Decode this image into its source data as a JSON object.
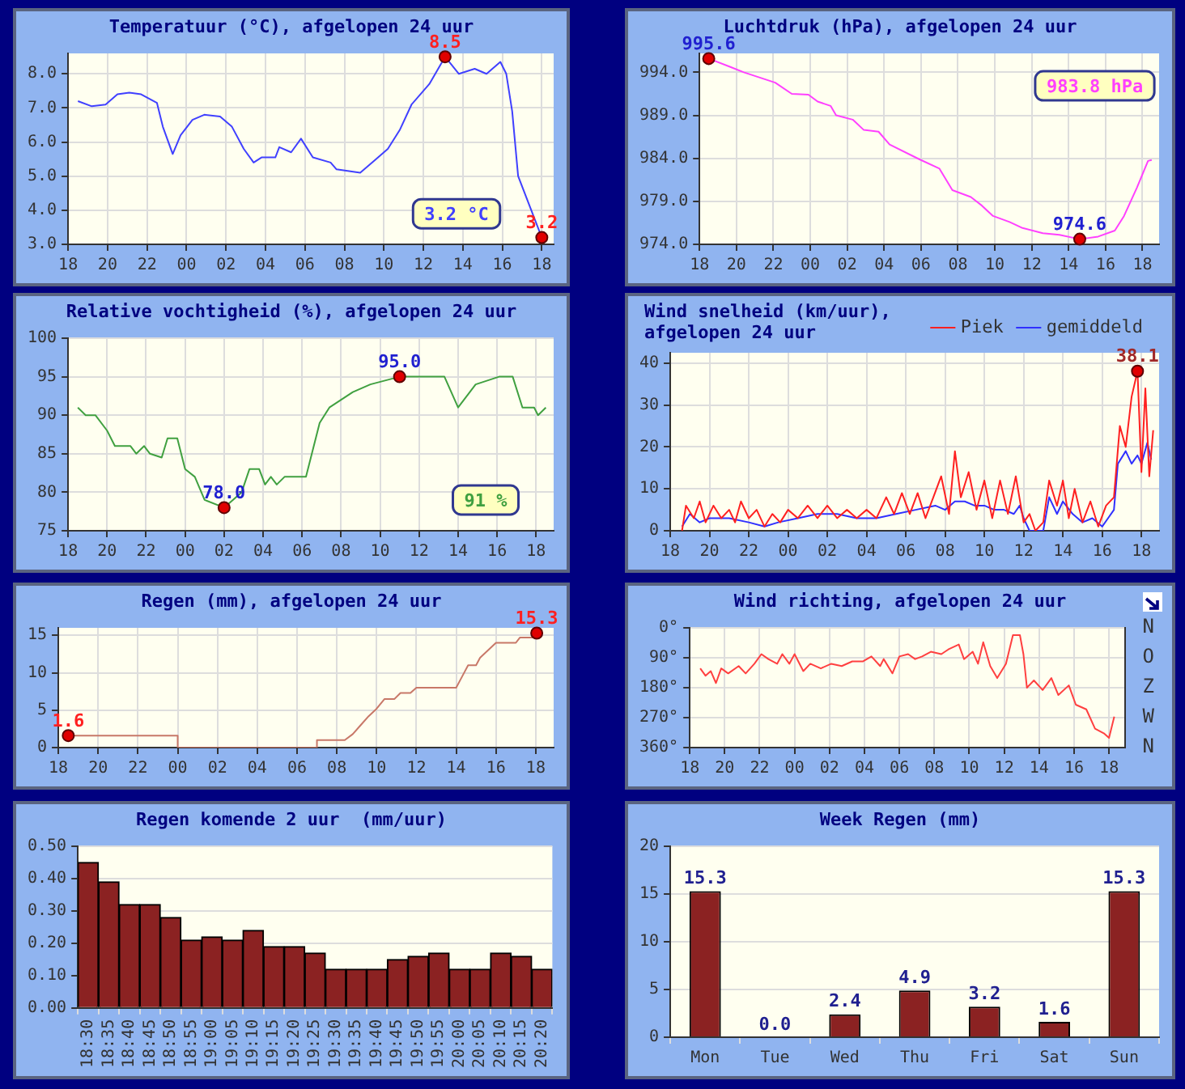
{
  "chart_data": [
    {
      "type": "line",
      "title": "Temperatuur (°C), afgelopen 24 uur",
      "x": [
        "--01-01T18:30",
        "--01-01T19:12",
        "--01-01T19:54",
        "--01-01T20:30",
        "--01-01T21:06",
        "--01-01T21:42",
        "--01-01T22:30",
        "--01-01T22:48",
        "--01-01T23:18",
        "--01-01T23:42",
        "--01-02T00:18",
        "--01-02T00:54",
        "--01-02T01:42",
        "--01-02T02:18",
        "--01-02T02:54",
        "--01-02T03:24",
        "--01-02T03:48",
        "--01-02T04:30",
        "--01-02T04:42",
        "--01-02T05:18",
        "--01-02T05:48",
        "--01-02T06:24",
        "--01-02T07:18",
        "--01-02T07:36",
        "--01-02T08:48",
        "--01-02T09:36",
        "--01-02T10:12",
        "--01-02T10:48",
        "--01-02T11:24",
        "--01-02T12:18",
        "--01-02T13:06",
        "--01-02T13:48",
        "--01-02T14:36",
        "--01-02T15:12",
        "--01-02T15:54",
        "--01-02T16:12",
        "--01-02T16:30",
        "--01-02T16:48",
        "--01-02T17:24",
        "--01-02T18:00"
      ],
      "series": [
        {
          "color": "#4040ff",
          "values": [
            7.2,
            7.05,
            7.1,
            7.4,
            7.45,
            7.4,
            7.15,
            6.45,
            5.65,
            6.2,
            6.65,
            6.8,
            6.75,
            6.45,
            5.8,
            5.4,
            5.55,
            5.55,
            5.85,
            5.7,
            6.1,
            5.55,
            5.4,
            5.2,
            5.1,
            5.5,
            5.8,
            6.35,
            7.1,
            7.7,
            8.5,
            8.0,
            8.15,
            8.0,
            8.35,
            8.0,
            6.9,
            5.0,
            4.1,
            3.2
          ]
        }
      ],
      "xlim": [
        "--01-01T18:00",
        "--01-02T18:36"
      ],
      "xticks": [
        {
          "value": "--01-01T18:00",
          "label": "18"
        },
        {
          "value": "--01-01T20:00",
          "label": "20"
        },
        {
          "value": "--01-01T22:00",
          "label": "22"
        },
        {
          "value": "--01-02T00:00",
          "label": "00"
        },
        {
          "value": "--01-02T02:00",
          "label": "02"
        },
        {
          "value": "--01-02T04:00",
          "label": "04"
        },
        {
          "value": "--01-02T06:00",
          "label": "06"
        },
        {
          "value": "--01-02T08:00",
          "label": "08"
        },
        {
          "value": "--01-02T10:00",
          "label": "10"
        },
        {
          "value": "--01-02T12:00",
          "label": "12"
        },
        {
          "value": "--01-02T14:00",
          "label": "14"
        },
        {
          "value": "--01-02T16:00",
          "label": "16"
        },
        {
          "value": "--01-02T18:00",
          "label": "18"
        }
      ],
      "ylim": [
        3.0,
        8.6
      ],
      "yticks": [
        {
          "value": 3,
          "label": "3.0"
        },
        {
          "value": 4,
          "label": "4.0"
        },
        {
          "value": 5,
          "label": "5.0"
        },
        {
          "value": 6,
          "label": "6.0"
        },
        {
          "value": 7,
          "label": "7.0"
        },
        {
          "value": 8,
          "label": "8.0"
        }
      ],
      "grid": true,
      "annotations": [
        {
          "text": "8.5",
          "x": "--01-02T13:06",
          "y": 8.5
        },
        {
          "text": "3.2",
          "x": "--01-02T18:00",
          "y": 3.2
        },
        "3.2 °C"
      ]
    },
    {
      "type": "line",
      "title": "Luchtdruk (hPa), afgelopen 24 uur",
      "x": [
        "--01-01T18:30",
        "--01-01T19:42",
        "--01-01T20:24",
        "--01-01T22:06",
        "--01-01T23:00",
        "--01-01T23:54",
        "--01-02T00:24",
        "--01-02T01:06",
        "--01-02T01:24",
        "--01-02T02:18",
        "--01-02T02:54",
        "--01-02T03:42",
        "--01-02T04:18",
        "--01-02T05:54",
        "--01-02T07:00",
        "--01-02T07:42",
        "--01-02T08:42",
        "--01-02T09:18",
        "--01-02T09:54",
        "--01-02T10:48",
        "--01-02T11:30",
        "--01-02T12:36",
        "--01-02T13:30",
        "--01-02T14:36",
        "--01-02T15:36",
        "--01-02T16:30",
        "--01-02T17:00",
        "--01-02T17:42",
        "--01-02T18:18",
        "--01-02T18:30"
      ],
      "series": [
        {
          "color": "#ff40ff",
          "values": [
            995.6,
            994.6,
            994.0,
            992.8,
            991.5,
            991.4,
            990.6,
            990.1,
            989.0,
            988.5,
            987.3,
            987.1,
            985.6,
            983.9,
            982.8,
            980.3,
            979.5,
            978.5,
            977.3,
            976.6,
            975.9,
            975.3,
            975.1,
            974.6,
            974.9,
            975.6,
            977.3,
            980.6,
            983.7,
            983.8
          ]
        }
      ],
      "xlim": [
        "--01-01T18:00",
        "--01-02T18:54"
      ],
      "xticks": [
        {
          "value": "--01-01T18:00",
          "label": "18"
        },
        {
          "value": "--01-01T20:00",
          "label": "20"
        },
        {
          "value": "--01-01T22:00",
          "label": "22"
        },
        {
          "value": "--01-02T00:00",
          "label": "00"
        },
        {
          "value": "--01-02T02:00",
          "label": "02"
        },
        {
          "value": "--01-02T04:00",
          "label": "04"
        },
        {
          "value": "--01-02T06:00",
          "label": "06"
        },
        {
          "value": "--01-02T08:00",
          "label": "08"
        },
        {
          "value": "--01-02T10:00",
          "label": "10"
        },
        {
          "value": "--01-02T12:00",
          "label": "12"
        },
        {
          "value": "--01-02T14:00",
          "label": "14"
        },
        {
          "value": "--01-02T16:00",
          "label": "16"
        },
        {
          "value": "--01-02T18:00",
          "label": "18"
        }
      ],
      "ylim": [
        974,
        996.2
      ],
      "yticks": [
        {
          "value": 974,
          "label": "974.0"
        },
        {
          "value": 979,
          "label": "979.0"
        },
        {
          "value": 984,
          "label": "984.0"
        },
        {
          "value": 989,
          "label": "989.0"
        },
        {
          "value": 994,
          "label": "994.0"
        }
      ],
      "grid": true,
      "annotations": [
        {
          "text": "995.6",
          "x": "--01-01T18:30",
          "y": 995.6
        },
        {
          "text": "974.6",
          "x": "--01-02T14:36",
          "y": 974.6
        },
        "983.8 hPa"
      ]
    },
    {
      "type": "line",
      "title": "Relative vochtigheid (%), afgelopen 24 uur",
      "x": [
        "--01-01T18:30",
        "--01-01T18:54",
        "--01-01T19:24",
        "--01-01T20:00",
        "--01-01T20:24",
        "--01-01T21:12",
        "--01-01T21:30",
        "--01-01T21:54",
        "--01-01T22:12",
        "--01-01T22:48",
        "--01-01T23:06",
        "--01-01T23:36",
        "--01-02T00:00",
        "--01-02T00:30",
        "--01-02T01:00",
        "--01-02T02:00",
        "--01-02T02:54",
        "--01-02T03:18",
        "--01-02T03:48",
        "--01-02T04:06",
        "--01-02T04:24",
        "--01-02T04:42",
        "--01-02T05:06",
        "--01-02T06:12",
        "--01-02T06:54",
        "--01-02T07:24",
        "--01-02T08:00",
        "--01-02T08:36",
        "--01-02T09:30",
        "--01-02T11:00",
        "--01-02T13:18",
        "--01-02T14:00",
        "--01-02T14:36",
        "--01-02T14:54",
        "--01-02T16:06",
        "--01-02T16:48",
        "--01-02T17:18",
        "--01-02T17:54",
        "--01-02T18:06",
        "--01-02T18:30"
      ],
      "series": [
        {
          "color": "#40a040",
          "values": [
            91,
            90,
            90,
            88,
            86,
            86,
            85,
            86,
            85,
            84.5,
            87,
            87,
            83,
            82,
            79,
            78,
            80,
            83,
            83,
            81,
            82,
            81,
            82,
            82,
            89,
            91,
            92,
            93,
            94,
            95,
            95,
            91,
            93,
            94,
            95,
            95,
            91,
            91,
            90,
            91
          ]
        }
      ],
      "xlim": [
        "--01-01T18:00",
        "--01-02T18:54"
      ],
      "xticks": [
        {
          "value": "--01-01T18:00",
          "label": "18"
        },
        {
          "value": "--01-01T20:00",
          "label": "20"
        },
        {
          "value": "--01-01T22:00",
          "label": "22"
        },
        {
          "value": "--01-02T00:00",
          "label": "00"
        },
        {
          "value": "--01-02T02:00",
          "label": "02"
        },
        {
          "value": "--01-02T04:00",
          "label": "04"
        },
        {
          "value": "--01-02T06:00",
          "label": "06"
        },
        {
          "value": "--01-02T08:00",
          "label": "08"
        },
        {
          "value": "--01-02T10:00",
          "label": "10"
        },
        {
          "value": "--01-02T12:00",
          "label": "12"
        },
        {
          "value": "--01-02T14:00",
          "label": "14"
        },
        {
          "value": "--01-02T16:00",
          "label": "16"
        },
        {
          "value": "--01-02T18:00",
          "label": "18"
        }
      ],
      "ylim": [
        75,
        100
      ],
      "yticks": [
        75,
        80,
        85,
        90,
        95,
        100
      ],
      "grid": true,
      "annotations": [
        {
          "text": "78.0",
          "x": "--01-02T02:00",
          "y": 78
        },
        {
          "text": "95.0",
          "x": "--01-02T11:00",
          "y": 95
        },
        "91 %"
      ]
    },
    {
      "type": "line",
      "title": "Wind snelheid (km/uur), afgelopen 24 uur",
      "legend": "top right",
      "series": [
        {
          "name": "Piek",
          "color": "#ff2020",
          "x": [
            "--01-01T18:36",
            "--01-01T18:48",
            "--01-01T19:12",
            "--01-01T19:30",
            "--01-01T19:48",
            "--01-01T20:12",
            "--01-01T20:36",
            "--01-01T21:00",
            "--01-01T21:18",
            "--01-01T21:36",
            "--01-01T22:00",
            "--01-01T22:24",
            "--01-01T22:48",
            "--01-01T23:12",
            "--01-01T23:36",
            "--01-02T00:00",
            "--01-02T00:30",
            "--01-02T01:00",
            "--01-02T01:30",
            "--01-02T02:00",
            "--01-02T02:30",
            "--01-02T03:00",
            "--01-02T03:30",
            "--01-02T04:00",
            "--01-02T04:30",
            "--01-02T05:00",
            "--01-02T05:24",
            "--01-02T05:48",
            "--01-02T06:12",
            "--01-02T06:36",
            "--01-02T07:00",
            "--01-02T07:24",
            "--01-02T07:48",
            "--01-02T08:12",
            "--01-02T08:30",
            "--01-02T08:48",
            "--01-02T09:12",
            "--01-02T09:36",
            "--01-02T10:00",
            "--01-02T10:24",
            "--01-02T10:48",
            "--01-02T11:12",
            "--01-02T11:36",
            "--01-02T12:00",
            "--01-02T12:18",
            "--01-02T12:36",
            "--01-02T13:00",
            "--01-02T13:18",
            "--01-02T13:42",
            "--01-02T14:00",
            "--01-02T14:18",
            "--01-02T14:36",
            "--01-02T15:00",
            "--01-02T15:24",
            "--01-02T15:48",
            "--01-02T16:12",
            "--01-02T16:36",
            "--01-02T16:54",
            "--01-02T17:12",
            "--01-02T17:30",
            "--01-02T17:48",
            "--01-02T18:00",
            "--01-02T18:12",
            "--01-02T18:24",
            "--01-02T18:36"
          ],
          "values": [
            0,
            6,
            3,
            7,
            2,
            6,
            3,
            5,
            2,
            7,
            3,
            5,
            1,
            4,
            2,
            5,
            3,
            6,
            3,
            6,
            3,
            5,
            3,
            5,
            3,
            8,
            4,
            9,
            4,
            9,
            3,
            8,
            13,
            4,
            19,
            8,
            14,
            5,
            12,
            3,
            12,
            4,
            13,
            2,
            4,
            0,
            2,
            12,
            6,
            12,
            3,
            10,
            2,
            7,
            1,
            6,
            8,
            25,
            20,
            32,
            38.1,
            14,
            34,
            13,
            24
          ]
        },
        {
          "name": "gemiddeld",
          "color": "#3030ff",
          "x": [
            "--01-01T18:36",
            "--01-01T19:00",
            "--01-01T19:30",
            "--01-01T20:00",
            "--01-01T21:00",
            "--01-01T22:00",
            "--01-01T22:48",
            "--01-01T23:30",
            "--01-02T00:30",
            "--01-02T01:30",
            "--01-02T02:30",
            "--01-02T03:30",
            "--01-02T04:30",
            "--01-02T05:30",
            "--01-02T06:30",
            "--01-02T07:30",
            "--01-02T08:00",
            "--01-02T08:30",
            "--01-02T09:00",
            "--01-02T09:30",
            "--01-02T10:00",
            "--01-02T10:30",
            "--01-02T11:00",
            "--01-02T11:30",
            "--01-02T11:48",
            "--01-02T12:00",
            "--01-02T12:18",
            "--01-02T13:00",
            "--01-02T13:18",
            "--01-02T13:42",
            "--01-02T14:00",
            "--01-02T14:30",
            "--01-02T15:00",
            "--01-02T15:30",
            "--01-02T16:00",
            "--01-02T16:18",
            "--01-02T16:36",
            "--01-02T16:48",
            "--01-02T17:12",
            "--01-02T17:30",
            "--01-02T17:48",
            "--01-02T18:00",
            "--01-02T18:18",
            "--01-02T18:30"
          ],
          "values": [
            1,
            4,
            2,
            3,
            3,
            2,
            1,
            2,
            3,
            4,
            4,
            3,
            3,
            4,
            5,
            6,
            5,
            7,
            7,
            6,
            6,
            5,
            5,
            4,
            6,
            3,
            0,
            0,
            8,
            4,
            7,
            4,
            2,
            3,
            1,
            3,
            5,
            16,
            19,
            16,
            18,
            16,
            21,
            17
          ]
        }
      ],
      "xlim": [
        "--01-01T18:00",
        "--01-02T18:54"
      ],
      "xticks": [
        {
          "value": "--01-01T18:00",
          "label": "18"
        },
        {
          "value": "--01-01T20:00",
          "label": "20"
        },
        {
          "value": "--01-01T22:00",
          "label": "22"
        },
        {
          "value": "--01-02T00:00",
          "label": "00"
        },
        {
          "value": "--01-02T02:00",
          "label": "02"
        },
        {
          "value": "--01-02T04:00",
          "label": "04"
        },
        {
          "value": "--01-02T06:00",
          "label": "06"
        },
        {
          "value": "--01-02T08:00",
          "label": "08"
        },
        {
          "value": "--01-02T10:00",
          "label": "10"
        },
        {
          "value": "--01-02T12:00",
          "label": "12"
        },
        {
          "value": "--01-02T14:00",
          "label": "14"
        },
        {
          "value": "--01-02T16:00",
          "label": "16"
        },
        {
          "value": "--01-02T18:00",
          "label": "18"
        }
      ],
      "ylim": [
        0,
        42.5
      ],
      "yticks": [
        0,
        10,
        20,
        30,
        40
      ],
      "grid": true,
      "annotations": [
        {
          "text": "38.1",
          "x": "--01-02T17:48",
          "y": 38.1
        }
      ]
    },
    {
      "type": "line",
      "title": "Regen (mm), afgelopen 24 uur",
      "x": [
        "--01-01T18:30",
        "--01-02T00:00",
        "--01-02T00:00",
        "--01-02T07:00",
        "--01-02T07:00",
        "--01-02T08:24",
        "--01-02T08:48",
        "--01-02T09:12",
        "--01-02T09:36",
        "--01-02T10:00",
        "--01-02T10:24",
        "--01-02T10:54",
        "--01-02T11:12",
        "--01-02T11:42",
        "--01-02T12:00",
        "--01-02T14:00",
        "--01-02T14:18",
        "--01-02T14:36",
        "--01-02T15:00",
        "--01-02T15:12",
        "--01-02T15:36",
        "--01-02T16:00",
        "--01-02T17:00",
        "--01-02T17:12",
        "--01-02T18:00",
        "--01-02T18:03"
      ],
      "series": [
        {
          "color": "#c87868",
          "values": [
            1.6,
            1.6,
            0,
            0,
            1.0,
            1.0,
            1.8,
            3.0,
            4.2,
            5.2,
            6.5,
            6.5,
            7.3,
            7.3,
            8.0,
            8.0,
            9.5,
            11.0,
            11.0,
            12.0,
            13.0,
            14.0,
            14.0,
            14.7,
            14.7,
            15.3
          ]
        }
      ],
      "xlim": [
        "--01-01T18:00",
        "--01-02T18:54"
      ],
      "xticks": [
        {
          "value": "--01-01T18:00",
          "label": "18"
        },
        {
          "value": "--01-01T20:00",
          "label": "20"
        },
        {
          "value": "--01-01T22:00",
          "label": "22"
        },
        {
          "value": "--01-02T00:00",
          "label": "00"
        },
        {
          "value": "--01-02T02:00",
          "label": "02"
        },
        {
          "value": "--01-02T04:00",
          "label": "04"
        },
        {
          "value": "--01-02T06:00",
          "label": "06"
        },
        {
          "value": "--01-02T08:00",
          "label": "08"
        },
        {
          "value": "--01-02T10:00",
          "label": "10"
        },
        {
          "value": "--01-02T12:00",
          "label": "12"
        },
        {
          "value": "--01-02T14:00",
          "label": "14"
        },
        {
          "value": "--01-02T16:00",
          "label": "16"
        },
        {
          "value": "--01-02T18:00",
          "label": "18"
        }
      ],
      "ylim": [
        0,
        16
      ],
      "yticks": [
        0,
        5,
        10,
        15
      ],
      "grid": true,
      "annotations": [
        {
          "text": "1.6",
          "x": "--01-01T18:30",
          "y": 1.6
        },
        {
          "text": "15.3",
          "x": "--01-02T18:03",
          "y": 15.3
        }
      ]
    },
    {
      "type": "line",
      "title": "Wind richting, afgelopen 24 uur",
      "x": [
        "--01-01T18:36",
        "--01-01T18:54",
        "--01-01T19:12",
        "--01-01T19:30",
        "--01-01T19:48",
        "--01-01T20:12",
        "--01-01T20:48",
        "--01-01T21:12",
        "--01-01T21:42",
        "--01-01T22:06",
        "--01-01T22:30",
        "--01-01T23:00",
        "--01-01T23:18",
        "--01-01T23:42",
        "--01-02T00:00",
        "--01-02T00:30",
        "--01-02T00:54",
        "--01-02T01:30",
        "--01-02T02:06",
        "--01-02T02:42",
        "--01-02T03:18",
        "--01-02T03:54",
        "--01-02T04:24",
        "--01-02T04:54",
        "--01-02T05:06",
        "--01-02T05:36",
        "--01-02T06:00",
        "--01-02T06:30",
        "--01-02T06:54",
        "--01-02T07:18",
        "--01-02T07:48",
        "--01-02T08:24",
        "--01-02T08:48",
        "--01-02T09:24",
        "--01-02T09:42",
        "--01-02T10:12",
        "--01-02T10:30",
        "--01-02T10:48",
        "--01-02T11:12",
        "--01-02T11:36",
        "--01-02T12:06",
        "--01-02T12:30",
        "--01-02T12:54",
        "--01-02T13:06",
        "--01-02T13:18",
        "--01-02T13:42",
        "--01-02T14:12",
        "--01-02T14:42",
        "--01-02T15:06",
        "--01-02T15:42",
        "--01-02T16:06",
        "--01-02T16:42",
        "--01-02T17:12",
        "--01-02T17:42",
        "--01-02T18:00",
        "--01-02T18:18"
      ],
      "series": [
        {
          "color": "#ff4040",
          "values": [
            122,
            144,
            130,
            166,
            122,
            137,
            115,
            137,
            108,
            79,
            94,
            108,
            79,
            108,
            79,
            130,
            108,
            122,
            108,
            115,
            101,
            101,
            86,
            115,
            94,
            137,
            86,
            79,
            94,
            86,
            72,
            79,
            65,
            50,
            94,
            72,
            108,
            43,
            115,
            151,
            108,
            22,
            22,
            79,
            180,
            158,
            187,
            151,
            202,
            173,
            231,
            245,
            303,
            317,
            331,
            267
          ]
        }
      ],
      "xlim": [
        "--01-01T18:00",
        "--01-02T18:54"
      ],
      "xticks": [
        {
          "value": "--01-01T18:00",
          "label": "18"
        },
        {
          "value": "--01-01T20:00",
          "label": "20"
        },
        {
          "value": "--01-01T22:00",
          "label": "22"
        },
        {
          "value": "--01-02T00:00",
          "label": "00"
        },
        {
          "value": "--01-02T02:00",
          "label": "02"
        },
        {
          "value": "--01-02T04:00",
          "label": "04"
        },
        {
          "value": "--01-02T06:00",
          "label": "06"
        },
        {
          "value": "--01-02T08:00",
          "label": "08"
        },
        {
          "value": "--01-02T10:00",
          "label": "10"
        },
        {
          "value": "--01-02T12:00",
          "label": "12"
        },
        {
          "value": "--01-02T14:00",
          "label": "14"
        },
        {
          "value": "--01-02T16:00",
          "label": "16"
        },
        {
          "value": "--01-02T18:00",
          "label": "18"
        }
      ],
      "ylim": [
        360,
        0
      ],
      "yticks": [
        {
          "value": 0,
          "label": "0°"
        },
        {
          "value": 90,
          "label": "90°"
        },
        {
          "value": 180,
          "label": "180°"
        },
        {
          "value": 270,
          "label": "270°"
        },
        {
          "value": 360,
          "label": "360°"
        }
      ],
      "y2_categories": [
        "N",
        "O",
        "Z",
        "W",
        "N"
      ],
      "grid": true
    },
    {
      "type": "bar",
      "title": "Regen komende 2 uur  (mm/uur)",
      "categories": [
        "18:30",
        "18:35",
        "18:40",
        "18:45",
        "18:50",
        "18:55",
        "19:00",
        "19:05",
        "19:10",
        "19:15",
        "19:20",
        "19:25",
        "19:30",
        "19:35",
        "19:40",
        "19:45",
        "19:50",
        "19:55",
        "20:00",
        "20:05",
        "20:10",
        "20:15",
        "20:20"
      ],
      "series": [
        {
          "color": "#8b2222",
          "values": [
            0.45,
            0.39,
            0.32,
            0.32,
            0.28,
            0.21,
            0.22,
            0.21,
            0.24,
            0.19,
            0.19,
            0.17,
            0.12,
            0.12,
            0.12,
            0.15,
            0.16,
            0.17,
            0.12,
            0.12,
            0.17,
            0.16,
            0.12
          ]
        }
      ],
      "ylim": [
        0,
        0.5
      ],
      "yticks": [
        {
          "value": 0,
          "label": "0.00"
        },
        {
          "value": 0.1,
          "label": "0.10"
        },
        {
          "value": 0.2,
          "label": "0.20"
        },
        {
          "value": 0.3,
          "label": "0.30"
        },
        {
          "value": 0.4,
          "label": "0.40"
        },
        {
          "value": 0.5,
          "label": "0.50"
        }
      ],
      "grid": "y"
    },
    {
      "type": "bar",
      "title": "Week Regen (mm)",
      "categories": [
        "Mon",
        "Tue",
        "Wed",
        "Thu",
        "Fri",
        "Sat",
        "Sun"
      ],
      "series": [
        {
          "color": "#8b2222",
          "values": [
            15.3,
            0.0,
            2.4,
            4.9,
            3.2,
            1.6,
            15.3
          ],
          "value_labels": [
            "15.3",
            "0.0",
            "2.4",
            "4.9",
            "3.2",
            "1.6",
            "15.3"
          ]
        }
      ],
      "ylim": [
        0,
        20
      ],
      "yticks": [
        0,
        5,
        10,
        15,
        20
      ],
      "grid": "y"
    }
  ]
}
